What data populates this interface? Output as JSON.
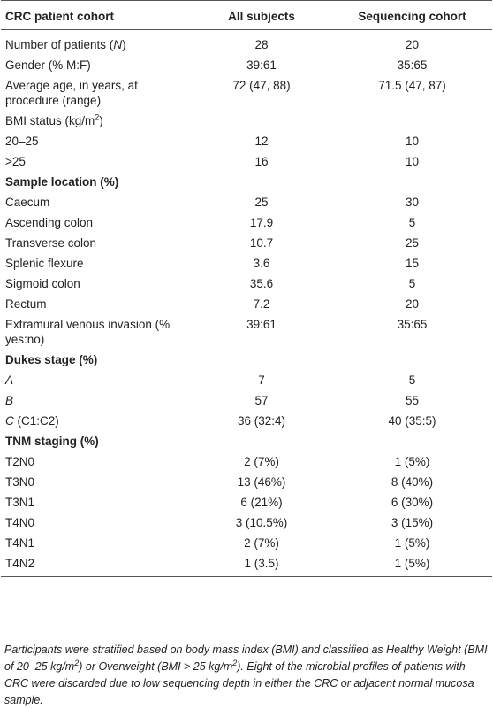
{
  "table": {
    "header": [
      "CRC patient cohort",
      "All subjects",
      "Sequencing cohort"
    ],
    "rows": [
      {
        "label": [
          "Number of patients (",
          "N",
          ")"
        ],
        "values": [
          28,
          20
        ]
      },
      {
        "label": "Gender (% M:F)",
        "values": [
          "39:61",
          "35:65"
        ]
      },
      {
        "label": "Average age, in years, at procedure (range)",
        "values": [
          "72 (47, 88)",
          "71.5 (47, 87)"
        ]
      },
      {
        "label": [
          "BMI status (kg/m",
          "2",
          ")"
        ]
      },
      {
        "label": "20–25",
        "values": [
          12,
          10
        ]
      },
      {
        "label": ">25",
        "values": [
          16,
          10
        ]
      },
      {
        "section": "Sample location (%)"
      },
      {
        "label": "Caecum",
        "values": [
          25,
          30
        ]
      },
      {
        "label": "Ascending colon",
        "values": [
          17.9,
          5
        ]
      },
      {
        "label": "Transverse colon",
        "values": [
          10.7,
          25
        ]
      },
      {
        "label": "Splenic flexure",
        "values": [
          3.6,
          15
        ]
      },
      {
        "label": "Sigmoid colon",
        "values": [
          35.6,
          5
        ]
      },
      {
        "label": "Rectum",
        "values": [
          7.2,
          20
        ]
      },
      {
        "label": "Extramural venous invasion (% yes:no)",
        "values": [
          "39:61",
          "35:65"
        ]
      },
      {
        "section": "Dukes stage (%)"
      },
      {
        "label": "A",
        "values": [
          7,
          5
        ]
      },
      {
        "label": "B",
        "values": [
          57,
          55
        ]
      },
      {
        "label": [
          "C",
          " (C1:C2)"
        ],
        "values": [
          "36 (32:4)",
          "40 (35:5)"
        ]
      },
      {
        "section": "TNM staging (%)"
      },
      {
        "label": "T2N0",
        "values": [
          "2 (7%)",
          "1 (5%)"
        ]
      },
      {
        "label": "T3N0",
        "values": [
          "13 (46%)",
          "8 (40%)"
        ]
      },
      {
        "label": "T3N1",
        "values": [
          "6 (21%)",
          "6 (30%)"
        ]
      },
      {
        "label": "T4N0",
        "values": [
          "3 (10.5%)",
          "3 (15%)"
        ]
      },
      {
        "label": "T4N1",
        "values": [
          "2 (7%)",
          "1 (5%)"
        ]
      },
      {
        "label": "T4N2",
        "values": [
          "1 (3.5)",
          "1 (5%)"
        ]
      }
    ]
  },
  "footnote": [
    "Participants were stratified based on body mass index (BMI) and classified as Healthy Weight (BMI of 20–25 kg/m",
    "2",
    ") or Overweight (BMI > 25 kg/m",
    "2",
    "). Eight of the microbial profiles of patients with CRC were discarded due to low sequencing depth in either the CRC or adjacent normal mucosa sample."
  ]
}
